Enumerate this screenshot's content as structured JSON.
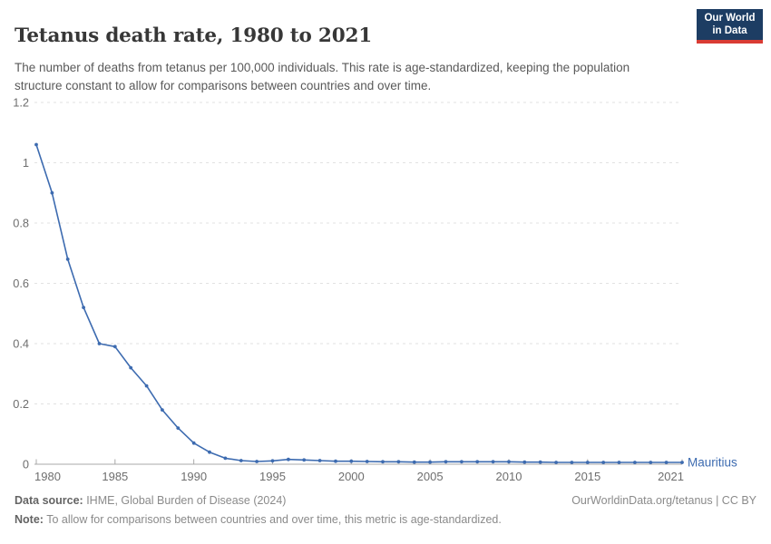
{
  "header": {
    "title": "Tetanus death rate, 1980 to 2021",
    "subtitle": "The number of deaths from tetanus per 100,000 individuals. This rate is age-standardized, keeping the population structure constant to allow for comparisons between countries and over time.",
    "logo": {
      "line1": "Our World",
      "line2": "in Data",
      "bg_color": "#1d3d63",
      "accent_color": "#d93c34"
    }
  },
  "chart_data": {
    "type": "line",
    "title": "Tetanus death rate, 1980 to 2021",
    "xlabel": "",
    "ylabel": "",
    "xlim": [
      1980,
      2021
    ],
    "ylim": [
      0,
      1.2
    ],
    "grid": "horizontal-dashed",
    "legend_position": "end-of-line-label",
    "x_ticks": [
      1980,
      1985,
      1990,
      1995,
      2000,
      2005,
      2010,
      2015,
      2021
    ],
    "y_ticks": [
      0,
      0.2,
      0.4,
      0.6,
      0.8,
      1,
      1.2
    ],
    "colors": {
      "grid": "#e2e2e2",
      "axis": "#a8a8a8",
      "tick_label": "#6e6e6e"
    },
    "series": [
      {
        "name": "Mauritius",
        "color": "#3d6bb0",
        "x": [
          1980,
          1981,
          1982,
          1983,
          1984,
          1985,
          1986,
          1987,
          1988,
          1989,
          1990,
          1991,
          1992,
          1993,
          1994,
          1995,
          1996,
          1997,
          1998,
          1999,
          2000,
          2001,
          2002,
          2003,
          2004,
          2005,
          2006,
          2007,
          2008,
          2009,
          2010,
          2011,
          2012,
          2013,
          2014,
          2015,
          2016,
          2017,
          2018,
          2019,
          2020,
          2021
        ],
        "values": [
          1.06,
          0.9,
          0.68,
          0.52,
          0.4,
          0.39,
          0.32,
          0.26,
          0.18,
          0.12,
          0.07,
          0.04,
          0.02,
          0.012,
          0.009,
          0.011,
          0.016,
          0.014,
          0.012,
          0.01,
          0.01,
          0.009,
          0.008,
          0.008,
          0.007,
          0.007,
          0.008,
          0.008,
          0.008,
          0.008,
          0.008,
          0.007,
          0.007,
          0.006,
          0.006,
          0.006,
          0.006,
          0.006,
          0.006,
          0.006,
          0.006,
          0.006
        ]
      }
    ]
  },
  "footer": {
    "datasource_label": "Data source:",
    "datasource_value": " IHME, Global Burden of Disease (2024)",
    "note_label": "Note:",
    "note_value": " To allow for comparisons between countries and over time, this metric is age-standardized.",
    "rights": "OurWorldinData.org/tetanus | CC BY"
  }
}
